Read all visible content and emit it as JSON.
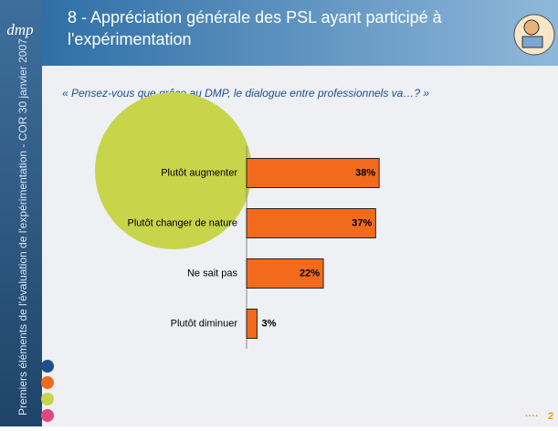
{
  "header": {
    "logo": "dmp",
    "sidebar_text": "Premiers éléments de l'évaluation de l'expérimentation - COR 30 janvier 2007",
    "page_number": "2"
  },
  "chart_data": {
    "type": "bar",
    "orientation": "horizontal",
    "title": [
      "8 - Appréciation générale des PSL ayant participé à",
      "l'expérimentation"
    ],
    "subtitle": "« Pensez-vous que grâce au DMP, le dialogue entre professionnels va…? »",
    "categories": [
      "Plutôt augmenter",
      "Plutôt changer de nature",
      "Ne sait pas",
      "Plutôt diminuer"
    ],
    "values": [
      38,
      37,
      22,
      3
    ],
    "value_labels": [
      "38%",
      "37%",
      "22%",
      "3%"
    ],
    "color": "#f26b1d"
  }
}
